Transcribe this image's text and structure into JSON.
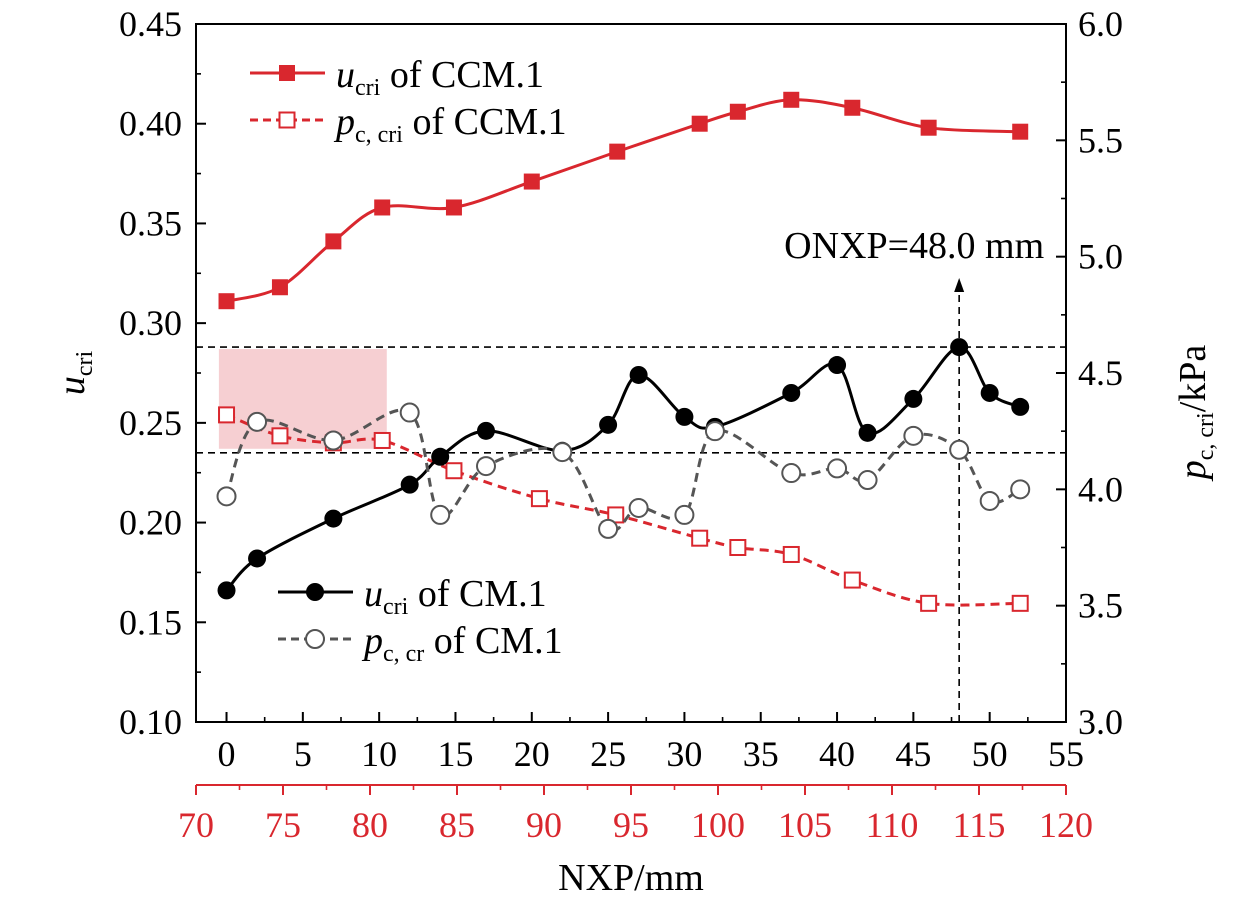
{
  "chart_data": {
    "type": "line",
    "x_bottom_label": "NXP/mm",
    "x_top_range": [
      -2,
      55
    ],
    "x_bottom_range": [
      70,
      120
    ],
    "x_top_ticks": [
      "0",
      "5",
      "10",
      "15",
      "20",
      "25",
      "30",
      "35",
      "40",
      "45",
      "50",
      "55"
    ],
    "x_bottom_ticks": [
      "70",
      "75",
      "80",
      "85",
      "90",
      "95",
      "100",
      "105",
      "110",
      "115",
      "120"
    ],
    "y_left_label_main": "u",
    "y_left_label_sub": "cri",
    "y_left_range": [
      0.1,
      0.45
    ],
    "y_left_ticks": [
      "0.10",
      "0.15",
      "0.20",
      "0.25",
      "0.30",
      "0.35",
      "0.40",
      "0.45"
    ],
    "y_right_label_main": "p",
    "y_right_label_sub": "c, cri",
    "y_right_label_suffix": "/kPa",
    "y_right_range": [
      3.0,
      6.0
    ],
    "y_right_ticks": [
      "3.0",
      "3.5",
      "4.0",
      "4.5",
      "5.0",
      "5.5",
      "6.0"
    ],
    "annotation": {
      "text": "ONXP=48.0 mm",
      "x": 48.0
    },
    "reference_lines": [
      0.288,
      0.235
    ],
    "shaded_region": {
      "x": [
        -0.5,
        10.5
      ],
      "y": [
        0.237,
        0.287
      ],
      "color": "#f6cfd2"
    },
    "colors": {
      "red": "#d9272e",
      "black": "#000000",
      "gray": "#555555"
    },
    "series": [
      {
        "name_main": "u",
        "name_sub": "cri",
        "name_suffix": " of CCM.1",
        "axis": "left",
        "color": "#d9272e",
        "dash": "solid",
        "marker": "filled-square",
        "x": [
          0,
          3.5,
          7,
          10.2,
          14.9,
          20,
          25.6,
          31,
          33.5,
          37,
          41,
          46,
          52
        ],
        "y": [
          0.311,
          0.318,
          0.341,
          0.358,
          0.358,
          0.371,
          0.386,
          0.4,
          0.406,
          0.412,
          0.408,
          0.398,
          0.396
        ]
      },
      {
        "name_main": "p",
        "name_sub": "c, cri",
        "name_suffix": " of CCM.1",
        "axis": "right",
        "color": "#d9272e",
        "dash": "dashed",
        "marker": "open-square",
        "x": [
          0,
          3.5,
          7,
          10.2,
          14.9,
          20.5,
          25.5,
          31,
          33.5,
          37,
          41,
          46,
          52
        ],
        "y": [
          4.32,
          4.23,
          4.2,
          4.21,
          4.08,
          3.96,
          3.89,
          3.79,
          3.75,
          3.72,
          3.61,
          3.51,
          3.51
        ]
      },
      {
        "name_main": "u",
        "name_sub": "cri",
        "name_suffix": " of CM.1",
        "axis": "left",
        "color": "#000000",
        "dash": "solid",
        "marker": "filled-circle",
        "x": [
          0,
          2,
          7,
          12,
          14,
          17,
          22,
          25,
          27,
          30,
          32,
          37,
          40,
          42,
          45,
          48,
          50,
          52
        ],
        "y": [
          0.166,
          0.182,
          0.202,
          0.219,
          0.233,
          0.246,
          0.236,
          0.249,
          0.274,
          0.253,
          0.248,
          0.265,
          0.279,
          0.245,
          0.262,
          0.288,
          0.265,
          0.258
        ]
      },
      {
        "name_main": "p",
        "name_sub": "c, cr",
        "name_suffix": " of CM.1",
        "axis": "right",
        "color": "#555555",
        "dash": "dashed",
        "marker": "open-circle",
        "x": [
          0,
          2,
          7,
          12,
          14,
          17,
          22,
          25,
          27,
          30,
          32,
          37,
          40,
          42,
          45,
          48,
          50,
          52
        ],
        "y": [
          3.97,
          4.29,
          4.21,
          4.33,
          3.89,
          4.1,
          4.16,
          3.83,
          3.92,
          3.89,
          4.25,
          4.07,
          4.09,
          4.04,
          4.23,
          4.17,
          3.95,
          4.0
        ]
      }
    ]
  }
}
